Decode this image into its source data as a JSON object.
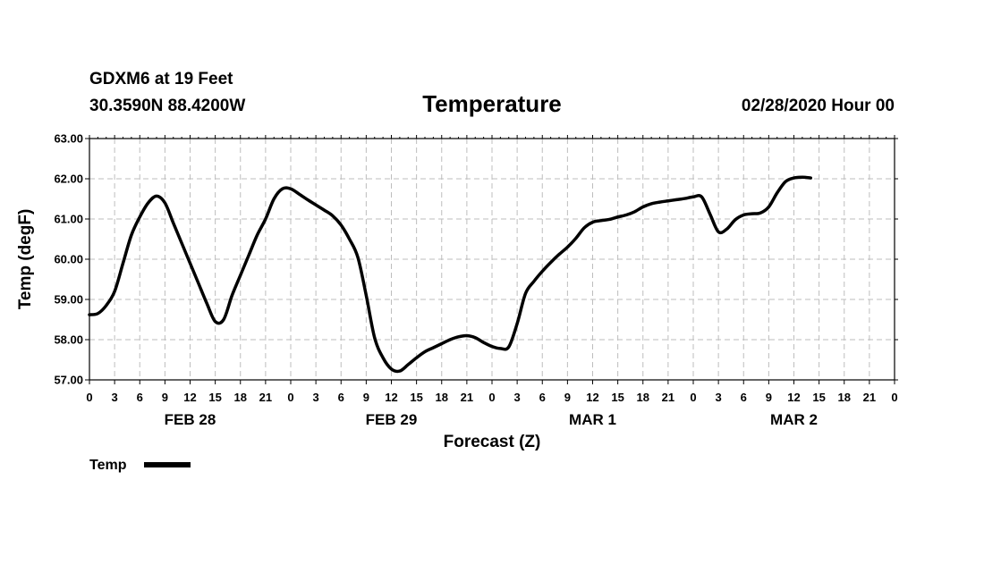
{
  "header": {
    "station": "GDXM6 at 19 Feet",
    "coords": "30.3590N 88.4200W",
    "title": "Temperature",
    "run": "02/28/2020 Hour 00"
  },
  "chart_data": {
    "type": "line",
    "title": "Temperature",
    "xlabel": "Forecast (Z)",
    "ylabel": "Temp (degF)",
    "ylim": [
      57.0,
      63.0
    ],
    "xlim": [
      0,
      96
    ],
    "yticks": [
      "57.00",
      "58.00",
      "59.00",
      "60.00",
      "61.00",
      "62.00",
      "63.00"
    ],
    "xticks": [
      "0",
      "3",
      "6",
      "9",
      "12",
      "15",
      "18",
      "21",
      "0",
      "3",
      "6",
      "9",
      "12",
      "15",
      "18",
      "21",
      "0",
      "3",
      "6",
      "9",
      "12",
      "15",
      "18",
      "21",
      "0",
      "3",
      "6",
      "9",
      "12",
      "15",
      "18",
      "21",
      "0"
    ],
    "day_labels": [
      {
        "label": "FEB 28",
        "hour": 12
      },
      {
        "label": "FEB 29",
        "hour": 36
      },
      {
        "label": "MAR 1",
        "hour": 60
      },
      {
        "label": "MAR 2",
        "hour": 84
      }
    ],
    "grid": true,
    "legend": "bottom-left",
    "series": [
      {
        "name": "Temp",
        "color": "#000000",
        "points": [
          [
            0,
            58.62
          ],
          [
            1,
            58.65
          ],
          [
            2,
            58.85
          ],
          [
            3,
            59.2
          ],
          [
            4,
            59.9
          ],
          [
            5,
            60.6
          ],
          [
            6,
            61.05
          ],
          [
            7,
            61.4
          ],
          [
            8,
            61.57
          ],
          [
            9,
            61.4
          ],
          [
            10,
            60.9
          ],
          [
            11,
            60.4
          ],
          [
            12,
            59.9
          ],
          [
            13,
            59.4
          ],
          [
            14,
            58.9
          ],
          [
            15,
            58.45
          ],
          [
            16,
            58.5
          ],
          [
            17,
            59.1
          ],
          [
            18,
            59.6
          ],
          [
            19,
            60.1
          ],
          [
            20,
            60.6
          ],
          [
            21,
            61.0
          ],
          [
            22,
            61.5
          ],
          [
            23,
            61.75
          ],
          [
            24,
            61.75
          ],
          [
            25,
            61.62
          ],
          [
            26,
            61.48
          ],
          [
            27,
            61.35
          ],
          [
            28,
            61.22
          ],
          [
            29,
            61.08
          ],
          [
            30,
            60.85
          ],
          [
            31,
            60.5
          ],
          [
            32,
            60.05
          ],
          [
            33,
            59.1
          ],
          [
            34,
            58.05
          ],
          [
            35,
            57.55
          ],
          [
            36,
            57.27
          ],
          [
            37,
            57.22
          ],
          [
            38,
            57.38
          ],
          [
            39,
            57.55
          ],
          [
            40,
            57.7
          ],
          [
            41,
            57.8
          ],
          [
            42,
            57.9
          ],
          [
            43,
            58.0
          ],
          [
            44,
            58.07
          ],
          [
            45,
            58.1
          ],
          [
            46,
            58.05
          ],
          [
            47,
            57.93
          ],
          [
            48,
            57.83
          ],
          [
            49,
            57.78
          ],
          [
            50,
            57.82
          ],
          [
            51,
            58.4
          ],
          [
            52,
            59.15
          ],
          [
            53,
            59.45
          ],
          [
            54,
            59.7
          ],
          [
            55,
            59.92
          ],
          [
            56,
            60.12
          ],
          [
            57,
            60.3
          ],
          [
            58,
            60.52
          ],
          [
            59,
            60.78
          ],
          [
            60,
            60.92
          ],
          [
            61,
            60.96
          ],
          [
            62,
            60.99
          ],
          [
            63,
            61.05
          ],
          [
            64,
            61.1
          ],
          [
            65,
            61.18
          ],
          [
            66,
            61.3
          ],
          [
            67,
            61.38
          ],
          [
            68,
            61.42
          ],
          [
            69,
            61.45
          ],
          [
            70,
            61.48
          ],
          [
            71,
            61.51
          ],
          [
            72,
            61.55
          ],
          [
            73,
            61.55
          ],
          [
            74,
            61.12
          ],
          [
            75,
            60.68
          ],
          [
            76,
            60.75
          ],
          [
            77,
            60.98
          ],
          [
            78,
            61.1
          ],
          [
            79,
            61.13
          ],
          [
            80,
            61.15
          ],
          [
            81,
            61.3
          ],
          [
            82,
            61.65
          ],
          [
            83,
            61.93
          ],
          [
            84,
            62.02
          ],
          [
            85,
            62.04
          ],
          [
            86,
            62.02
          ]
        ]
      }
    ]
  }
}
